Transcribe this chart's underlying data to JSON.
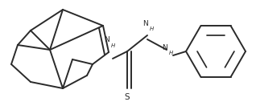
{
  "bg_color": "#ffffff",
  "line_color": "#2a2a2a",
  "line_width": 1.4,
  "text_color": "#2a2a2a",
  "font_size": 6.5,
  "figsize": [
    3.18,
    1.32
  ],
  "dpi": 100,
  "xlim": [
    0,
    318
  ],
  "ylim": [
    0,
    132
  ]
}
